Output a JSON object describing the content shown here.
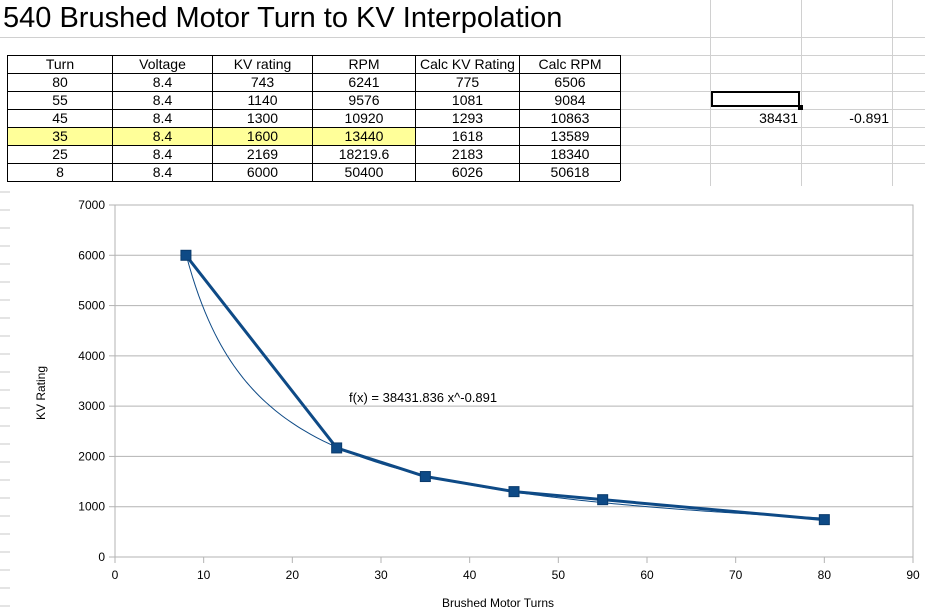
{
  "sheet_title": "540 Brushed Motor Turn to KV Interpolation",
  "table": {
    "headers": [
      "Turn",
      "Voltage",
      "KV rating",
      "RPM",
      "Calc KV Rating",
      "Calc RPM"
    ],
    "rows": [
      [
        "80",
        "8.4",
        "743",
        "6241",
        "775",
        "6506"
      ],
      [
        "55",
        "8.4",
        "1140",
        "9576",
        "1081",
        "9084"
      ],
      [
        "45",
        "8.4",
        "1300",
        "10920",
        "1293",
        "10863"
      ],
      [
        "35",
        "8.4",
        "1600",
        "13440",
        "1618",
        "13589"
      ],
      [
        "25",
        "8.4",
        "2169",
        "18219.6",
        "2183",
        "18340"
      ],
      [
        "8",
        "8.4",
        "6000",
        "50400",
        "6026",
        "50618"
      ]
    ],
    "highlight_row": 3,
    "highlight_color": "#ffff99"
  },
  "side_values": {
    "coef": "38431",
    "exponent": "-0.891"
  },
  "chart_data": {
    "type": "line",
    "title": "",
    "xlabel": "Brushed Motor Turns",
    "ylabel": "KV Rating",
    "xlim": [
      0,
      90
    ],
    "ylim": [
      0,
      7000
    ],
    "x_ticks": [
      0,
      10,
      20,
      30,
      40,
      50,
      60,
      70,
      80,
      90
    ],
    "y_ticks": [
      0,
      1000,
      2000,
      3000,
      4000,
      5000,
      6000,
      7000
    ],
    "grid": true,
    "series": [
      {
        "color": "#0e4a86",
        "marker": "square",
        "points": [
          {
            "x": 8,
            "y": 6000
          },
          {
            "x": 25,
            "y": 2169
          },
          {
            "x": 35,
            "y": 1600
          },
          {
            "x": 45,
            "y": 1300
          },
          {
            "x": 55,
            "y": 1140
          },
          {
            "x": 80,
            "y": 743
          }
        ]
      }
    ],
    "trendline": {
      "type": "power",
      "coefficient": 38431.836,
      "exponent": -0.891,
      "x_from": 8,
      "x_to": 80,
      "color": "#0e4a86",
      "equation_label": "f(x) = 38431.836 x^-0.891"
    }
  }
}
